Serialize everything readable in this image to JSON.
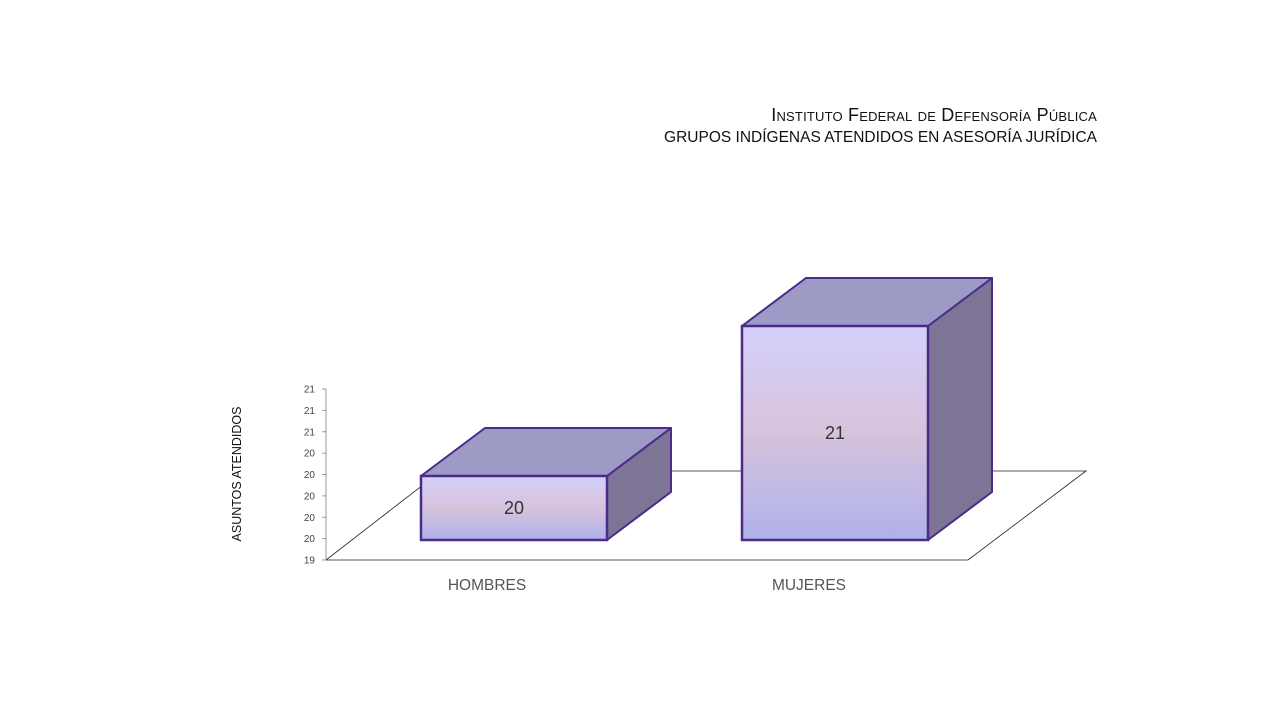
{
  "chart_data": {
    "type": "bar",
    "title": "Instituto Federal de Defensoría Pública",
    "subtitle": "GRUPOS INDÍGENAS ATENDIDOS EN ASESORÍA JURÍDICA",
    "ylabel": "ASUNTOS ATENDIDOS",
    "xlabel": "",
    "categories": [
      "HOMBRES",
      "MUJERES"
    ],
    "values": [
      20,
      21
    ],
    "data_labels": [
      "20",
      "21"
    ],
    "ylim": [
      19,
      21
    ],
    "ytick_labels": [
      "19",
      "20",
      "20",
      "20",
      "20",
      "20",
      "21",
      "21",
      "21"
    ],
    "grid": false,
    "legend": "none",
    "colors": {
      "bar_front_top": "#d4d0fb",
      "bar_front_mid": "#d6c3dc",
      "bar_front_bottom": "#afb1ea",
      "bar_top": "#9d9ac6",
      "bar_side": "#7e7596",
      "bar_edge": "#4b2a8a"
    }
  }
}
